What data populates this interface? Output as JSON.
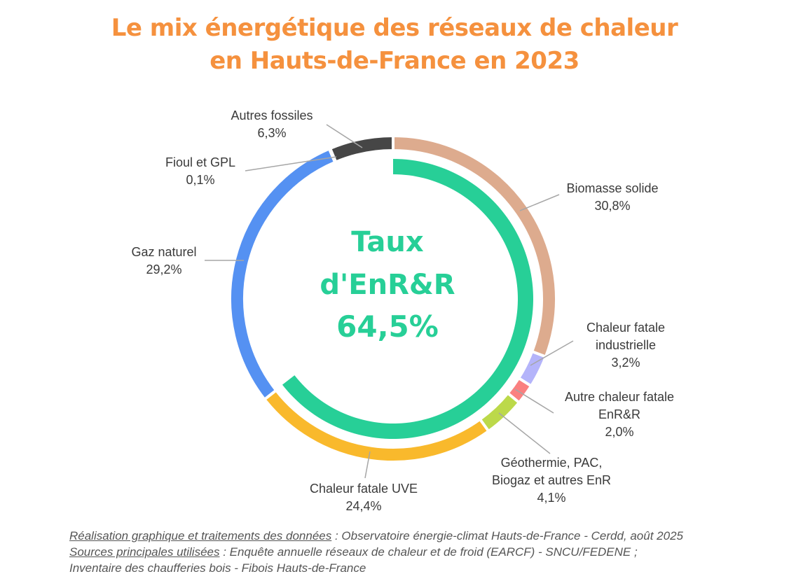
{
  "title": {
    "line1": "Le mix énergétique des réseaux de chaleur",
    "line2": "en Hauts-de-France en 2023"
  },
  "center": {
    "line1": "Taux",
    "line2": "d'EnR&R",
    "line3": "64,5%"
  },
  "chart_data": {
    "type": "pie",
    "categories": [
      "Biomasse solide",
      "Chaleur fatale industrielle",
      "Autre chaleur fatale EnR&R",
      "Géothermie, PAC, Biogaz et autres EnR",
      "Chaleur fatale UVE",
      "Gaz naturel",
      "Fioul et GPL",
      "Autres fossiles"
    ],
    "values": [
      30.8,
      3.2,
      2.0,
      4.1,
      24.4,
      29.2,
      0.1,
      6.3
    ],
    "value_labels": [
      "30,8%",
      "3,2%",
      "2,0%",
      "4,1%",
      "24,4%",
      "29,2%",
      "0,1%",
      "6,3%"
    ],
    "colors": [
      "#ddab8e",
      "#b4b4fa",
      "#fa8080",
      "#bcd94a",
      "#f9b92c",
      "#5591f2",
      "#3f3f3f",
      "#464646"
    ],
    "renewable_share": 64.5,
    "renewable_color": "#27cf97",
    "label_lines": [
      [
        "Biomasse solide",
        "30,8%"
      ],
      [
        "Chaleur fatale",
        "industrielle",
        "3,2%"
      ],
      [
        "Autre chaleur fatale",
        "EnR&R",
        "2,0%"
      ],
      [
        "Géothermie, PAC,",
        "Biogaz et autres EnR",
        "4,1%"
      ],
      [
        "Chaleur fatale UVE",
        "24,4%"
      ],
      [
        "Gaz naturel",
        "29,2%"
      ],
      [
        "Fioul et GPL",
        "0,1%"
      ],
      [
        "Autres fossiles",
        "6,3%"
      ]
    ]
  },
  "footer": {
    "line1_underlined": "Réalisation graphique et traitements des données",
    "line1_rest": " : Observatoire énergie-climat Hauts-de-France - Cerdd, août 2025",
    "line2_underlined": "Sources principales utilisées",
    "line2_rest": " : Enquête annuelle réseaux de chaleur et de froid (EARCF) - SNCU/FEDENE ;",
    "line3": "Inventaire des chaufferies bois - Fibois Hauts-de-France"
  }
}
